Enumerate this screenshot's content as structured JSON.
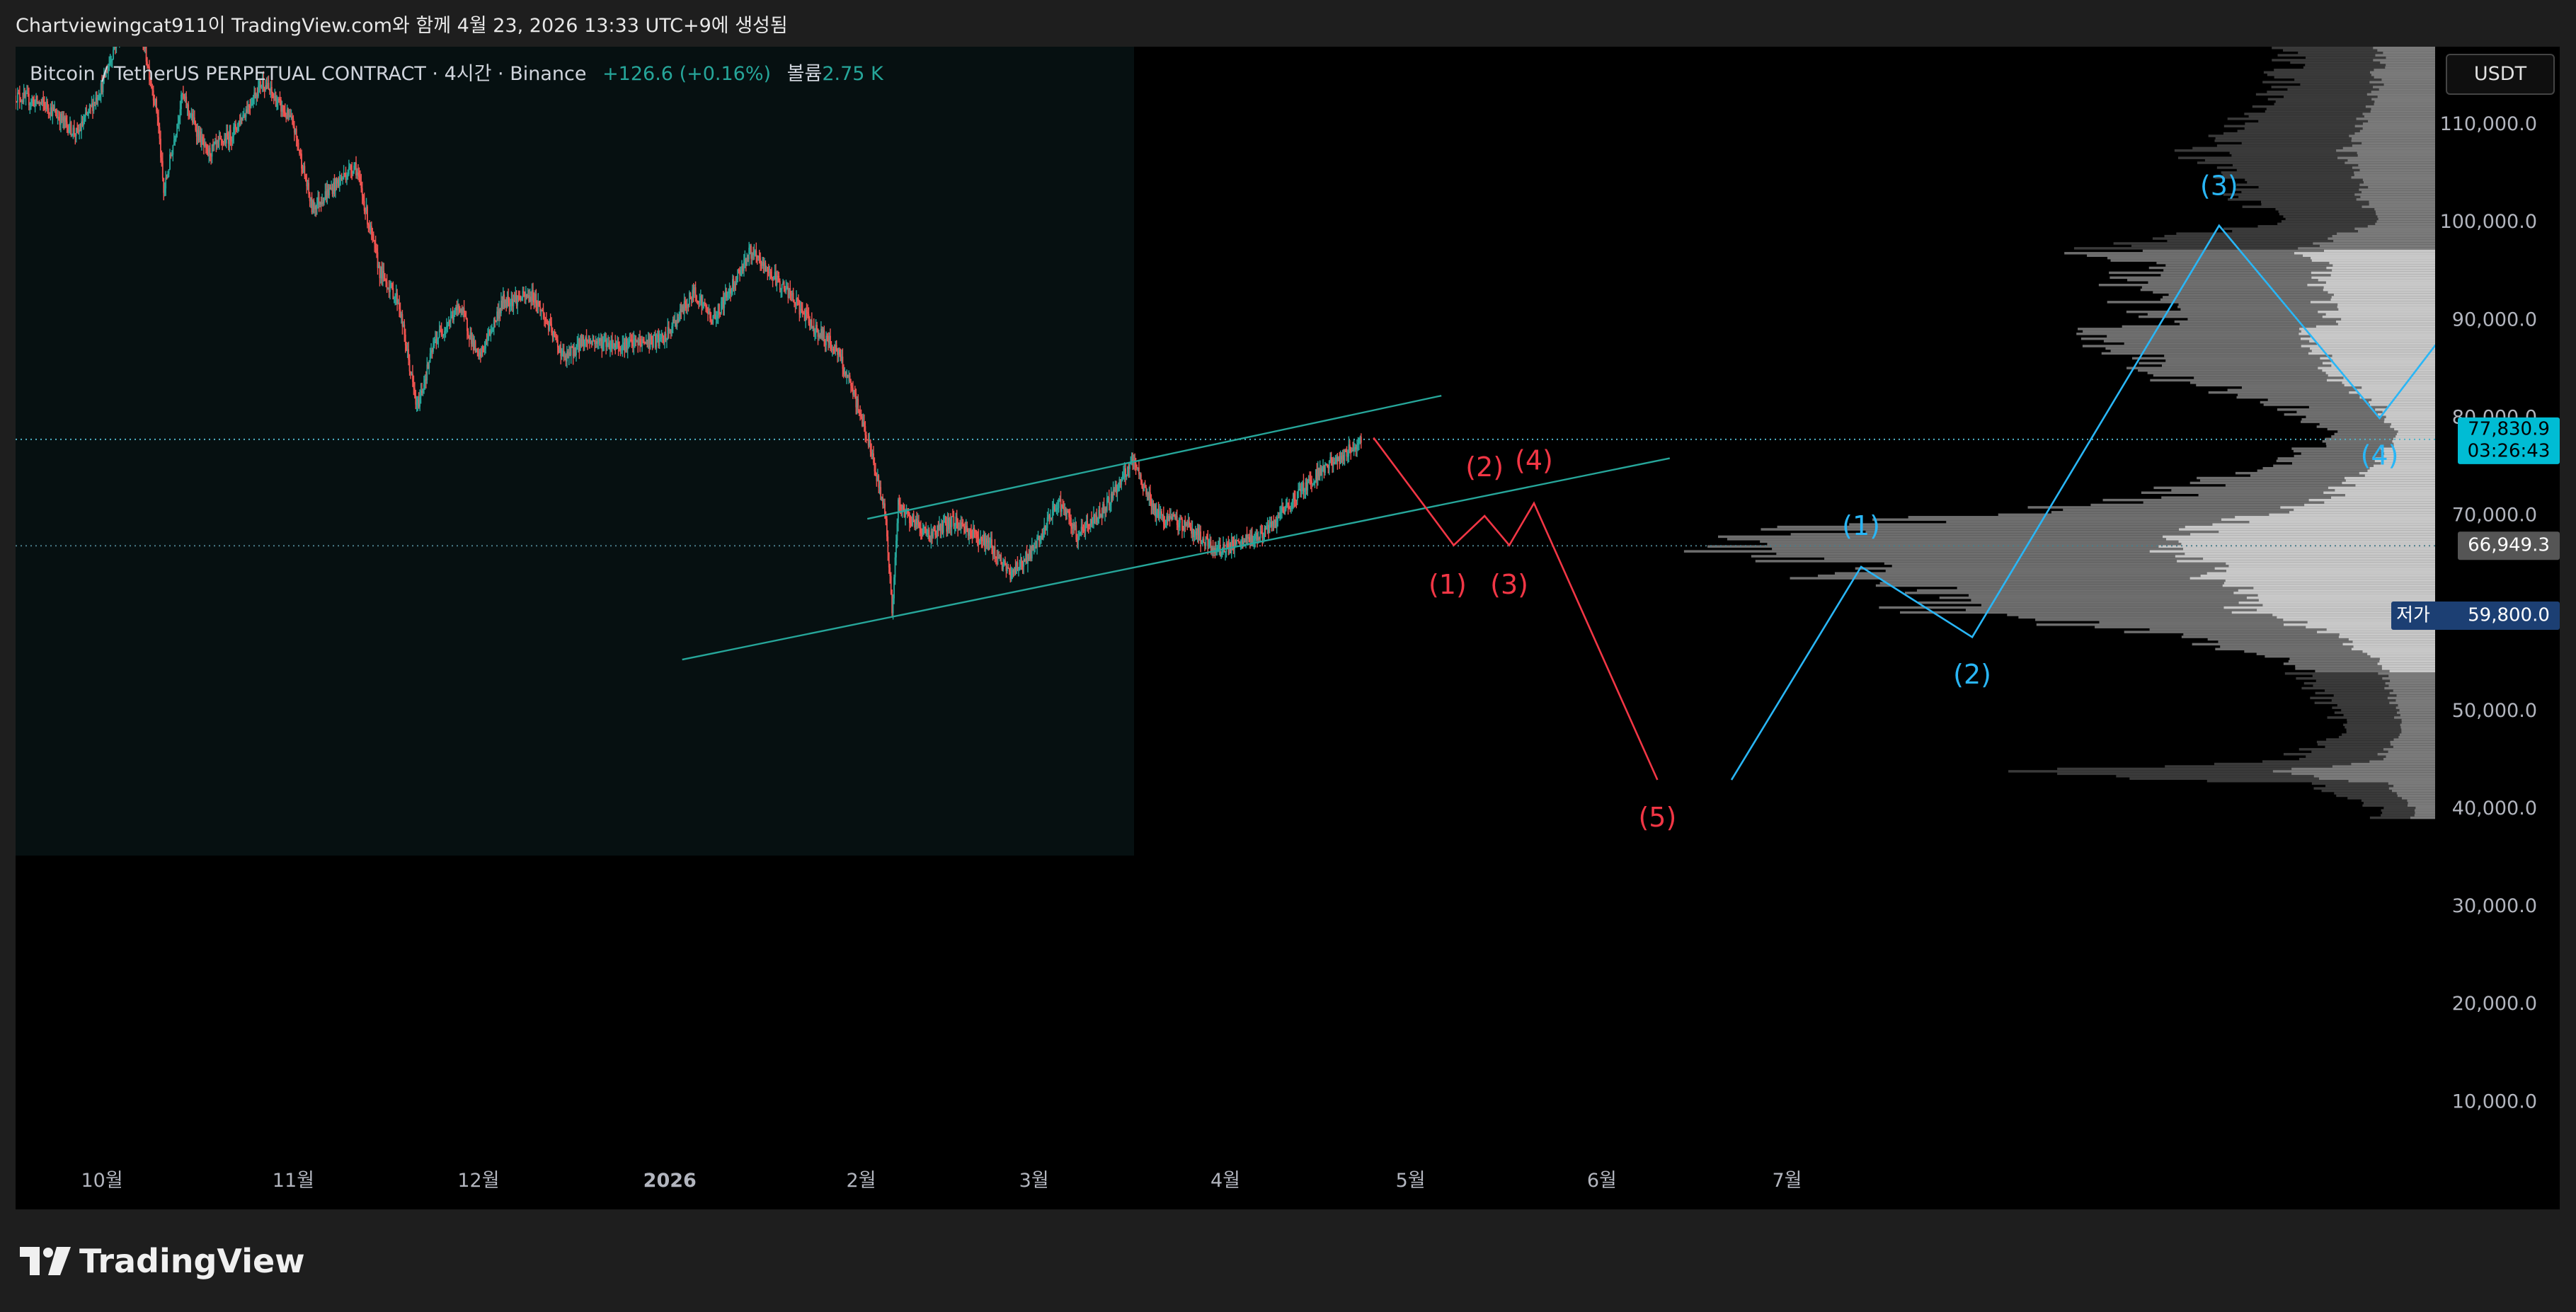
{
  "header": {
    "snapshot_text": "Chartviewingcat911이 TradingView.com와 함께 4월 23, 2026 13:33 UTC+9에 생성됨"
  },
  "legend": {
    "symbol": "Bitcoin / TetherUS PERPETUAL CONTRACT · 4시간 · Binance",
    "change": "+126.6 (+0.16%)",
    "volume_label": "볼륨",
    "volume_value": "2.75 K"
  },
  "price_scale": {
    "currency": "USDT"
  },
  "footer": {
    "brand": "TradingView"
  },
  "colors": {
    "background": "#000000",
    "frame": "#1e1e1e",
    "up": "#26a69a",
    "down": "#ef5350",
    "bullish_projection": "#29b6f6",
    "bearish_projection": "#f23645",
    "channel": "#26a69a",
    "current_price_bg": "#00bcd4",
    "low_label_bg": "#1c3f73"
  },
  "chart_data": {
    "type": "candlestick",
    "interval": "4h",
    "ylim": [
      0,
      118000
    ],
    "y_ticks": [
      10000,
      20000,
      30000,
      40000,
      50000,
      60000,
      70000,
      80000,
      90000,
      100000,
      110000
    ],
    "y_tick_labels": [
      "10,000.0",
      "20,000.0",
      "30,000.0",
      "40,000.0",
      "50,000.0",
      "60,000.0",
      "70,000.0",
      "80,000.0",
      "90,000.0",
      "100,000.0",
      "110,000.0"
    ],
    "x_axis_labels": [
      {
        "label": "10월",
        "date": "2025-10-01"
      },
      {
        "label": "11월",
        "date": "2025-11-01"
      },
      {
        "label": "12월",
        "date": "2025-12-01"
      },
      {
        "label": "2026",
        "date": "2026-01-01",
        "bold": true
      },
      {
        "label": "2월",
        "date": "2026-02-01"
      },
      {
        "label": "3월",
        "date": "2026-03-01"
      },
      {
        "label": "4월",
        "date": "2026-04-01"
      },
      {
        "label": "5월",
        "date": "2026-05-01"
      },
      {
        "label": "6월",
        "date": "2026-06-01"
      },
      {
        "label": "7월",
        "date": "2026-07-01"
      }
    ],
    "x_range": [
      "2025-09-17",
      "2026-10-14"
    ],
    "price_path": [
      [
        "2025-09-17",
        113000
      ],
      [
        "2025-09-22",
        112000
      ],
      [
        "2025-09-27",
        109000
      ],
      [
        "2025-10-01",
        114000
      ],
      [
        "2025-10-06",
        124000
      ],
      [
        "2025-10-10",
        111000
      ],
      [
        "2025-10-11",
        103000
      ],
      [
        "2025-10-14",
        113000
      ],
      [
        "2025-10-18",
        107000
      ],
      [
        "2025-10-22",
        109000
      ],
      [
        "2025-10-27",
        114500
      ],
      [
        "2025-11-01",
        110000
      ],
      [
        "2025-11-04",
        101500
      ],
      [
        "2025-11-08",
        104000
      ],
      [
        "2025-11-11",
        106000
      ],
      [
        "2025-11-15",
        95000
      ],
      [
        "2025-11-18",
        92000
      ],
      [
        "2025-11-21",
        81000
      ],
      [
        "2025-11-24",
        88000
      ],
      [
        "2025-11-28",
        91500
      ],
      [
        "2025-12-01",
        86000
      ],
      [
        "2025-12-05",
        92000
      ],
      [
        "2025-12-10",
        92500
      ],
      [
        "2025-12-15",
        86000
      ],
      [
        "2025-12-18",
        88000
      ],
      [
        "2025-12-24",
        87500
      ],
      [
        "2025-12-31",
        88000
      ],
      [
        "2026-01-05",
        93000
      ],
      [
        "2026-01-08",
        90000
      ],
      [
        "2026-01-14",
        97000
      ],
      [
        "2026-01-20",
        93000
      ],
      [
        "2026-01-24",
        89500
      ],
      [
        "2026-01-28",
        87000
      ],
      [
        "2026-01-31",
        82000
      ],
      [
        "2026-02-02",
        78000
      ],
      [
        "2026-02-05",
        70000
      ],
      [
        "2026-02-06",
        60000
      ],
      [
        "2026-02-07",
        71000
      ],
      [
        "2026-02-12",
        68000
      ],
      [
        "2026-02-16",
        69500
      ],
      [
        "2026-02-22",
        67000
      ],
      [
        "2026-02-25",
        64000
      ],
      [
        "2026-03-01",
        66500
      ],
      [
        "2026-03-05",
        71500
      ],
      [
        "2026-03-08",
        68000
      ],
      [
        "2026-03-12",
        70500
      ],
      [
        "2026-03-17",
        75500
      ],
      [
        "2026-03-21",
        70000
      ],
      [
        "2026-03-26",
        69000
      ],
      [
        "2026-03-30",
        66500
      ],
      [
        "2026-04-03",
        67000
      ],
      [
        "2026-04-08",
        68500
      ],
      [
        "2026-04-13",
        72500
      ],
      [
        "2026-04-17",
        75000
      ],
      [
        "2026-04-20",
        76000
      ],
      [
        "2026-04-23",
        77830.9
      ]
    ],
    "current_price": {
      "value": "77,830.9",
      "countdown": "03:26:43",
      "price": 77830.9
    },
    "marked_level": {
      "value": "66,949.3",
      "price": 66949.3
    },
    "low_level": {
      "label": "저가",
      "value": "59,800.0",
      "price": 59800
    },
    "channel": {
      "upper": [
        [
          "2026-02-02",
          69700
        ],
        [
          "2026-05-06",
          82300
        ]
      ],
      "lower": [
        [
          "2026-01-03",
          55300
        ],
        [
          "2026-06-12",
          75900
        ]
      ]
    },
    "bearish_projection": {
      "path": [
        [
          "2026-04-25",
          78000
        ],
        [
          "2026-05-08",
          67000
        ],
        [
          "2026-05-13",
          70000
        ],
        [
          "2026-05-17",
          67000
        ],
        [
          "2026-05-21",
          71300
        ],
        [
          "2026-06-10",
          43000
        ]
      ],
      "labels": [
        {
          "text": "(1)",
          "date": "2026-05-07",
          "price": 62800
        },
        {
          "text": "(2)",
          "date": "2026-05-13",
          "price": 74800
        },
        {
          "text": "(3)",
          "date": "2026-05-17",
          "price": 62800
        },
        {
          "text": "(4)",
          "date": "2026-05-21",
          "price": 75500
        },
        {
          "text": "(5)",
          "date": "2026-06-10",
          "price": 39000
        }
      ]
    },
    "bullish_projection": {
      "path": [
        [
          "2026-06-22",
          43000
        ],
        [
          "2026-07-13",
          64800
        ],
        [
          "2026-07-31",
          57600
        ],
        [
          "2026-09-09",
          99700
        ],
        [
          "2026-10-05",
          80000
        ],
        [
          "2026-11-20",
          118000
        ]
      ],
      "labels": [
        {
          "text": "(1)",
          "date": "2026-07-13",
          "price": 68800
        },
        {
          "text": "(2)",
          "date": "2026-07-31",
          "price": 53600
        },
        {
          "text": "(3)",
          "date": "2026-09-09",
          "price": 103600
        },
        {
          "text": "(4)",
          "date": "2026-10-05",
          "price": 76000
        }
      ]
    },
    "volume_profile": {
      "description": "visible range volume profile",
      "nodes": [
        {
          "price": 40000,
          "volume": 0.08
        },
        {
          "price": 42500,
          "volume": 0.18
        },
        {
          "price": 43500,
          "volume": 0.6
        },
        {
          "price": 45000,
          "volume": 0.2
        },
        {
          "price": 48000,
          "volume": 0.13
        },
        {
          "price": 52000,
          "volume": 0.16
        },
        {
          "price": 55000,
          "volume": 0.2
        },
        {
          "price": 58000,
          "volume": 0.38
        },
        {
          "price": 60000,
          "volume": 0.7
        },
        {
          "price": 62000,
          "volume": 0.75
        },
        {
          "price": 64000,
          "volume": 0.82
        },
        {
          "price": 66000,
          "volume": 0.9
        },
        {
          "price": 67000,
          "volume": 1.0
        },
        {
          "price": 68500,
          "volume": 0.88
        },
        {
          "price": 70000,
          "volume": 0.62
        },
        {
          "price": 72000,
          "volume": 0.38
        },
        {
          "price": 74000,
          "volume": 0.28
        },
        {
          "price": 76000,
          "volume": 0.2
        },
        {
          "price": 78000,
          "volume": 0.14
        },
        {
          "price": 81000,
          "volume": 0.2
        },
        {
          "price": 84000,
          "volume": 0.36
        },
        {
          "price": 86000,
          "volume": 0.42
        },
        {
          "price": 88000,
          "volume": 0.5
        },
        {
          "price": 90000,
          "volume": 0.38
        },
        {
          "price": 92000,
          "volume": 0.42
        },
        {
          "price": 95000,
          "volume": 0.4
        },
        {
          "price": 97000,
          "volume": 0.47
        },
        {
          "price": 100000,
          "volume": 0.23
        },
        {
          "price": 104000,
          "volume": 0.28
        },
        {
          "price": 107000,
          "volume": 0.33
        },
        {
          "price": 110000,
          "volume": 0.26
        },
        {
          "price": 113000,
          "volume": 0.22
        },
        {
          "price": 117000,
          "volume": 0.2
        }
      ],
      "value_area": [
        54000,
        97000
      ]
    }
  }
}
